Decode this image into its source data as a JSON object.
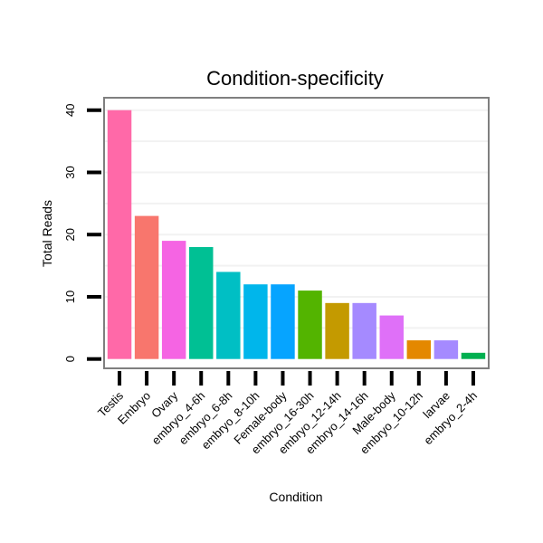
{
  "chart_data": {
    "type": "bar",
    "title": "Condition-specificity",
    "xlabel": "Condition",
    "ylabel": "Total Reads",
    "ylim": [
      -1.5,
      42
    ],
    "yticks": [
      0,
      10,
      20,
      30,
      40
    ],
    "grid": true,
    "categories": [
      "Testis",
      "Embryo",
      "Ovary",
      "embryo_4-6h",
      "embryo_6-8h",
      "embryo_8-10h",
      "Female-body",
      "embryo_16-30h",
      "embryo_12-14h",
      "embryo_14-16h",
      "Male-body",
      "embryo_10-12h",
      "larvae",
      "embryo_2-4h"
    ],
    "values": [
      40,
      23,
      19,
      18,
      14,
      12,
      12,
      11,
      9,
      9,
      7,
      3,
      3,
      1
    ],
    "colors": [
      "#FF69A8",
      "#F8766D",
      "#F564E3",
      "#00C094",
      "#00BFC4",
      "#00B6EB",
      "#06A4FF",
      "#53B400",
      "#C49A00",
      "#A58AFF",
      "#DF70F8",
      "#E48800",
      "#A58AFF",
      "#00B050"
    ]
  }
}
